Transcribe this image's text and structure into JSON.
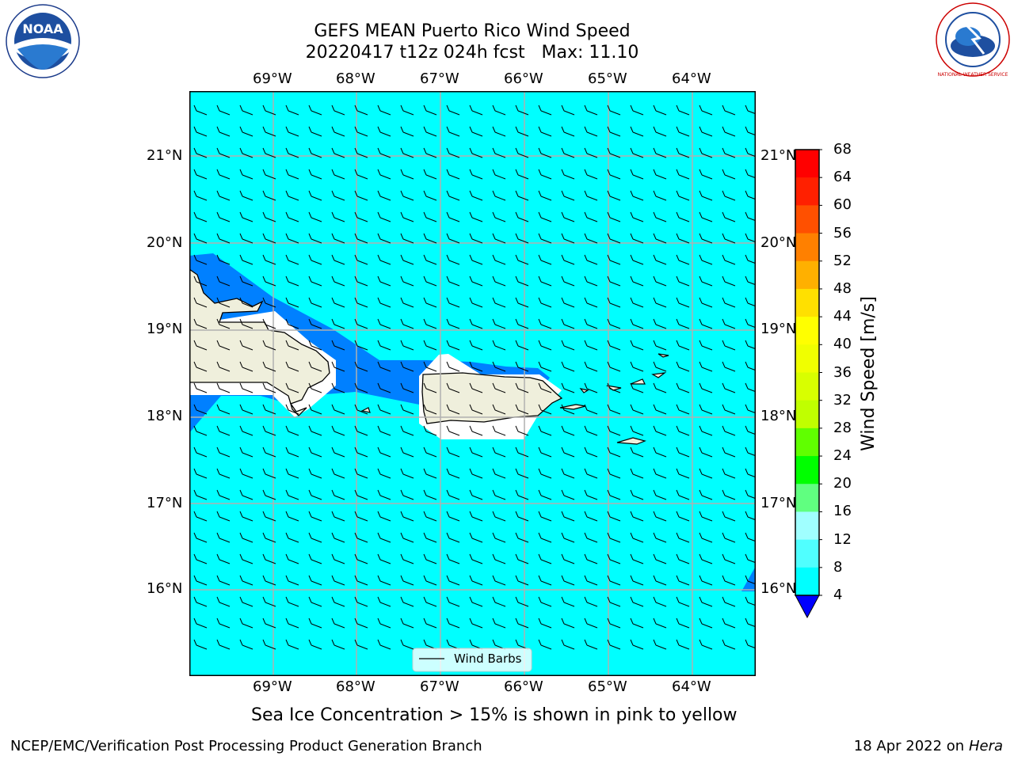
{
  "header": {
    "title_line1": "GEFS MEAN Puerto Rico Wind Speed",
    "title_line2": "20220417 t12z 024h fcst   Max: 11.10"
  },
  "logos": {
    "left_text": "NOAA",
    "left_ring_text": "NATIONAL OCEANIC AND ATMOSPHERIC ADMINISTRATION · U.S. DEPARTMENT OF COMMERCE",
    "right_ring_text": "NATIONAL WEATHER SERVICE"
  },
  "map": {
    "lon_ticks": [
      "69°W",
      "68°W",
      "67°W",
      "66°W",
      "65°W",
      "64°W"
    ],
    "lat_ticks": [
      "21°N",
      "20°N",
      "19°N",
      "18°N",
      "17°N",
      "16°N"
    ],
    "legend_label": "Wind Barbs",
    "colors": {
      "sea": "#00ffff",
      "land": "#efefdc",
      "low_wind": "#0080ff",
      "lowest_wind": "#0000ff",
      "grid": "#b0b0b0"
    }
  },
  "colorbar": {
    "label": "Wind Speed [m/s]",
    "ticks": [
      "68",
      "64",
      "60",
      "56",
      "52",
      "48",
      "44",
      "40",
      "36",
      "32",
      "28",
      "24",
      "20",
      "16",
      "12",
      "8",
      "4"
    ],
    "colors_top_to_bottom": [
      "#ff0000",
      "#ff2000",
      "#ff5000",
      "#ff8000",
      "#ffb000",
      "#ffe000",
      "#ffff00",
      "#f0ff00",
      "#d8ff00",
      "#c0ff00",
      "#60ff00",
      "#00ff00",
      "#60ff80",
      "#a0ffff",
      "#50ffff",
      "#00ffff",
      "#0080ff"
    ],
    "extend_color": "#0000ff"
  },
  "notes": {
    "sea_ice": "Sea Ice Concentration > 15% is shown in pink to yellow"
  },
  "footer": {
    "left": "NCEP/EMC/Verification Post Processing Product Generation Branch",
    "right_date": "18 Apr 2022 on ",
    "right_machine": "Hera"
  }
}
